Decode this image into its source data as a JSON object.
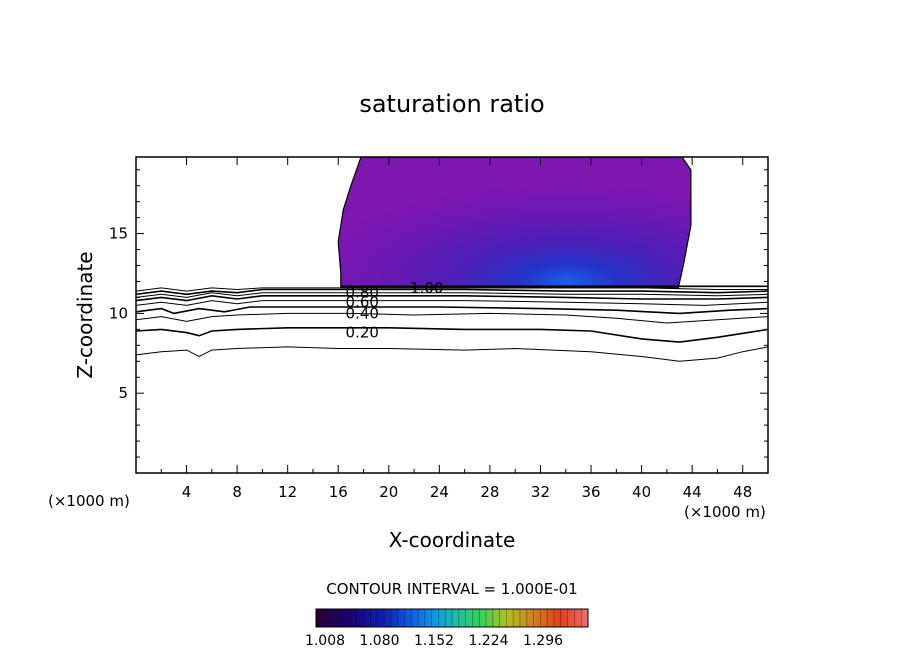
{
  "chart_data": {
    "type": "contour",
    "title": "saturation ratio",
    "xlabel": "X-coordinate",
    "ylabel": "Z-coordinate",
    "x_unit_left": "(×1000 m)",
    "x_unit_right": "(×1000 m)",
    "xlim": [
      0,
      50
    ],
    "ylim": [
      0,
      19.8
    ],
    "x_ticks": [
      "4",
      "8",
      "12",
      "16",
      "20",
      "24",
      "28",
      "32",
      "36",
      "40",
      "44",
      "48"
    ],
    "y_ticks": [
      "5",
      "10",
      "15"
    ],
    "contour_interval": "CONTOUR INTERVAL = 1.000E-01",
    "contour_labels": [
      {
        "text": "0.20",
        "x": 17.9,
        "z": 8.8
      },
      {
        "text": "0.40",
        "x": 17.9,
        "z": 10.0
      },
      {
        "text": "0.60",
        "x": 17.9,
        "z": 10.7
      },
      {
        "text": "0.80",
        "x": 17.9,
        "z": 11.3
      },
      {
        "text": "1.00",
        "x": 23.0,
        "z": 11.6
      }
    ],
    "contours": [
      {
        "level": 0.1,
        "points": [
          [
            0,
            7.4
          ],
          [
            2,
            7.6
          ],
          [
            4,
            7.7
          ],
          [
            5,
            7.3
          ],
          [
            6,
            7.7
          ],
          [
            8,
            7.8
          ],
          [
            12,
            7.9
          ],
          [
            16,
            7.8
          ],
          [
            20,
            7.8
          ],
          [
            26,
            7.7
          ],
          [
            30,
            7.8
          ],
          [
            36,
            7.6
          ],
          [
            40,
            7.3
          ],
          [
            43,
            7.0
          ],
          [
            46,
            7.2
          ],
          [
            48,
            7.6
          ],
          [
            50,
            7.9
          ]
        ]
      },
      {
        "level": 0.2,
        "points": [
          [
            0,
            8.9
          ],
          [
            2,
            9.0
          ],
          [
            4,
            8.8
          ],
          [
            5,
            8.6
          ],
          [
            6,
            8.9
          ],
          [
            8,
            9.0
          ],
          [
            12,
            9.1
          ],
          [
            17,
            9.1
          ],
          [
            20,
            9.1
          ],
          [
            26,
            9.0
          ],
          [
            32,
            9.0
          ],
          [
            36,
            8.9
          ],
          [
            40,
            8.4
          ],
          [
            43,
            8.2
          ],
          [
            46,
            8.5
          ],
          [
            50,
            9.0
          ]
        ]
      },
      {
        "level": 0.3,
        "points": [
          [
            0,
            9.6
          ],
          [
            2,
            9.8
          ],
          [
            4,
            9.5
          ],
          [
            6,
            9.8
          ],
          [
            8,
            9.9
          ],
          [
            12,
            10.0
          ],
          [
            17,
            10.0
          ],
          [
            22,
            9.9
          ],
          [
            28,
            10.0
          ],
          [
            34,
            9.9
          ],
          [
            38,
            9.7
          ],
          [
            42,
            9.4
          ],
          [
            46,
            9.6
          ],
          [
            50,
            9.8
          ]
        ]
      },
      {
        "level": 0.4,
        "points": [
          [
            0,
            10.1
          ],
          [
            2,
            10.3
          ],
          [
            3,
            10.0
          ],
          [
            5,
            10.3
          ],
          [
            7,
            10.1
          ],
          [
            9,
            10.4
          ],
          [
            13,
            10.4
          ],
          [
            17,
            10.4
          ],
          [
            24,
            10.4
          ],
          [
            32,
            10.3
          ],
          [
            38,
            10.2
          ],
          [
            43,
            10.0
          ],
          [
            47,
            10.2
          ],
          [
            50,
            10.3
          ]
        ]
      },
      {
        "level": 0.5,
        "points": [
          [
            0,
            10.5
          ],
          [
            2,
            10.7
          ],
          [
            4,
            10.5
          ],
          [
            6,
            10.8
          ],
          [
            8,
            10.6
          ],
          [
            10,
            10.8
          ],
          [
            14,
            10.8
          ],
          [
            18,
            10.8
          ],
          [
            26,
            10.8
          ],
          [
            34,
            10.7
          ],
          [
            40,
            10.6
          ],
          [
            45,
            10.5
          ],
          [
            50,
            10.7
          ]
        ]
      },
      {
        "level": 0.6,
        "points": [
          [
            0,
            10.8
          ],
          [
            2,
            11.0
          ],
          [
            4,
            10.8
          ],
          [
            6,
            11.1
          ],
          [
            8,
            10.9
          ],
          [
            10,
            11.1
          ],
          [
            14,
            11.1
          ],
          [
            18,
            11.1
          ],
          [
            26,
            11.1
          ],
          [
            34,
            11.0
          ],
          [
            40,
            10.9
          ],
          [
            46,
            10.9
          ],
          [
            50,
            11.0
          ]
        ]
      },
      {
        "level": 0.7,
        "points": [
          [
            0,
            11.0
          ],
          [
            2,
            11.2
          ],
          [
            4,
            11.0
          ],
          [
            6,
            11.3
          ],
          [
            8,
            11.1
          ],
          [
            10,
            11.3
          ],
          [
            14,
            11.3
          ],
          [
            18,
            11.3
          ],
          [
            26,
            11.3
          ],
          [
            34,
            11.2
          ],
          [
            40,
            11.2
          ],
          [
            46,
            11.1
          ],
          [
            50,
            11.2
          ]
        ]
      },
      {
        "level": 0.8,
        "points": [
          [
            0,
            11.2
          ],
          [
            2,
            11.4
          ],
          [
            4,
            11.2
          ],
          [
            6,
            11.4
          ],
          [
            8,
            11.3
          ],
          [
            10,
            11.5
          ],
          [
            14,
            11.5
          ],
          [
            18,
            11.5
          ],
          [
            26,
            11.5
          ],
          [
            34,
            11.4
          ],
          [
            40,
            11.4
          ],
          [
            46,
            11.3
          ],
          [
            50,
            11.4
          ]
        ]
      },
      {
        "level": 0.9,
        "points": [
          [
            0,
            11.4
          ],
          [
            2,
            11.6
          ],
          [
            4,
            11.4
          ],
          [
            6,
            11.6
          ],
          [
            8,
            11.5
          ],
          [
            10,
            11.6
          ],
          [
            14,
            11.6
          ],
          [
            18,
            11.6
          ],
          [
            26,
            11.6
          ],
          [
            34,
            11.6
          ],
          [
            40,
            11.6
          ],
          [
            46,
            11.5
          ],
          [
            50,
            11.5
          ]
        ]
      },
      {
        "level": 1.0,
        "points": [
          [
            16.2,
            11.7
          ],
          [
            20,
            11.7
          ],
          [
            26,
            11.7
          ],
          [
            32,
            11.7
          ],
          [
            38,
            11.7
          ],
          [
            43,
            11.7
          ],
          [
            50,
            11.7
          ]
        ]
      }
    ],
    "shaded_region": {
      "outline": [
        [
          16.2,
          11.6
        ],
        [
          16.2,
          12.5
        ],
        [
          16.0,
          14.5
        ],
        [
          16.4,
          16.5
        ],
        [
          17.0,
          18.0
        ],
        [
          17.8,
          19.8
        ],
        [
          43.2,
          19.8
        ],
        [
          43.9,
          19.0
        ],
        [
          43.9,
          15.5
        ],
        [
          43.3,
          13.0
        ],
        [
          42.9,
          11.6
        ]
      ]
    },
    "colorbar": {
      "tick_labels": [
        "1.008",
        "1.080",
        "1.152",
        "1.224",
        "1.296"
      ],
      "colors": [
        "#2a0030",
        "#1c0070",
        "#1020b0",
        "#1060e0",
        "#10a0e0",
        "#20c0a0",
        "#30d060",
        "#60d030",
        "#b0c020",
        "#d08020",
        "#e04020",
        "#f05050",
        "#f07070"
      ]
    }
  }
}
